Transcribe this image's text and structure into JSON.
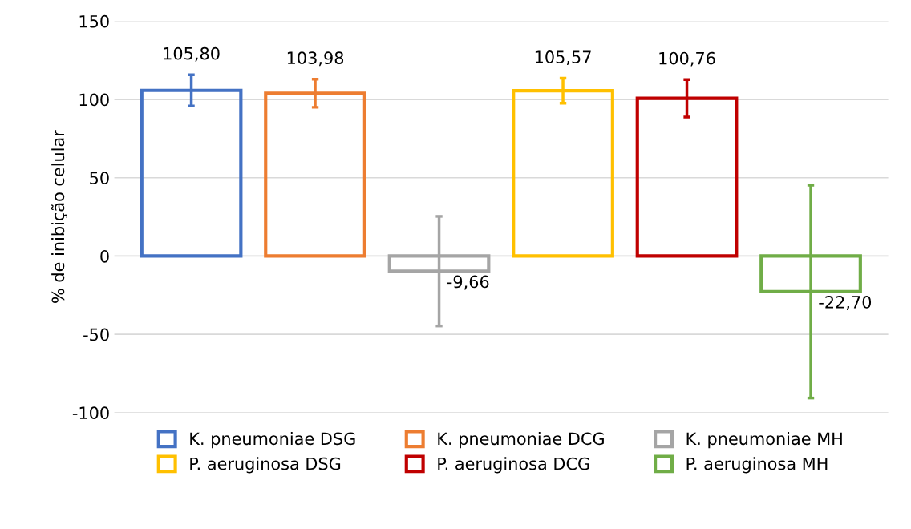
{
  "chart_data": {
    "type": "bar",
    "ylabel": "% de inibição celular",
    "categories": [
      null
    ],
    "series": [
      {
        "name": "K. pneumoniae DSG",
        "color": "#4472c4",
        "values": [
          105.8
        ],
        "errors": [
          10
        ],
        "value_labels": [
          "105,80"
        ]
      },
      {
        "name": "K. pneumoniae DCG",
        "color": "#ed7d31",
        "values": [
          103.98
        ],
        "errors": [
          9
        ],
        "value_labels": [
          "103,98"
        ]
      },
      {
        "name": "K. pneumoniae MH",
        "color": "#a5a5a5",
        "values": [
          -9.66
        ],
        "errors": [
          35
        ],
        "value_labels": [
          "-9,66"
        ]
      },
      {
        "name": "P. aeruginosa DSG",
        "color": "#ffc000",
        "values": [
          105.57
        ],
        "errors": [
          8
        ],
        "value_labels": [
          "105,57"
        ]
      },
      {
        "name": "P. aeruginosa DCG",
        "color": "#c00000",
        "values": [
          100.76
        ],
        "errors": [
          12
        ],
        "value_labels": [
          "100,76"
        ]
      },
      {
        "name": "P. aeruginosa MH",
        "color": "#70ad47",
        "values": [
          -22.7
        ],
        "errors": [
          68
        ],
        "value_labels": [
          "-22,70"
        ]
      }
    ],
    "ylim": [
      -100,
      150
    ],
    "yticks": [
      {
        "value": -100,
        "label": "-100"
      },
      {
        "value": -50,
        "label": "-50"
      },
      0,
      50,
      100,
      150
    ],
    "grid": "y",
    "legend": "bottom"
  }
}
